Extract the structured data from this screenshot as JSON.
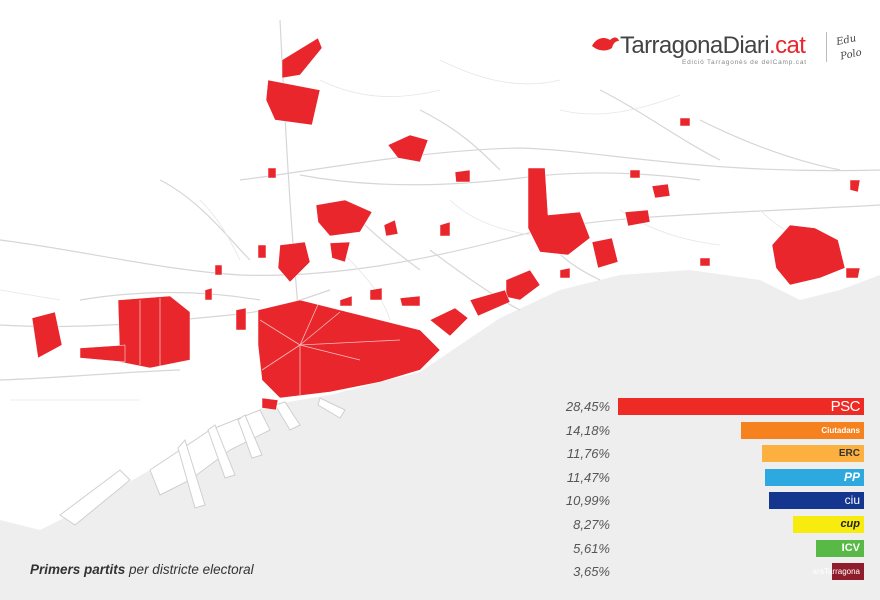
{
  "brand": {
    "name": "TarragonaDiari",
    "domain": ".cat",
    "tagline": "Edició Tarragonès de delCamp.cat",
    "signature": "Edu Polo"
  },
  "caption": {
    "bold": "Primers partits",
    "rest": " per districte electoral"
  },
  "colors": {
    "district": "#e8262b",
    "sea": "#eeeeee",
    "land": "#ffffff",
    "roads": "#d6d6d6"
  },
  "results": [
    {
      "party": "PSC",
      "value": 28.45,
      "label": "28,45%",
      "color": "#ee2a24",
      "text_color": "#ffffff"
    },
    {
      "party": "Ciutadans",
      "value": 14.18,
      "label": "14,18%",
      "color": "#f5811f",
      "text_color": "#ffffff"
    },
    {
      "party": "ERC",
      "value": 11.76,
      "label": "11,76%",
      "color": "#fbb040",
      "text_color": "#333333"
    },
    {
      "party": "PP",
      "value": 11.47,
      "label": "11,47%",
      "color": "#2ea9df",
      "text_color": "#ffffff"
    },
    {
      "party": "ciu",
      "value": 10.99,
      "label": "10,99%",
      "color": "#14368f",
      "text_color": "#ffffff"
    },
    {
      "party": "cup",
      "value": 8.27,
      "label": "8,27%",
      "color": "#f8ec0f",
      "text_color": "#222222"
    },
    {
      "party": "ICV",
      "value": 5.61,
      "label": "5,61%",
      "color": "#58b947",
      "text_color": "#ffffff"
    },
    {
      "party": "araTarragona",
      "value": 3.65,
      "label": "3,65%",
      "color": "#8f1d2c",
      "text_color": "#ffffff"
    }
  ]
}
